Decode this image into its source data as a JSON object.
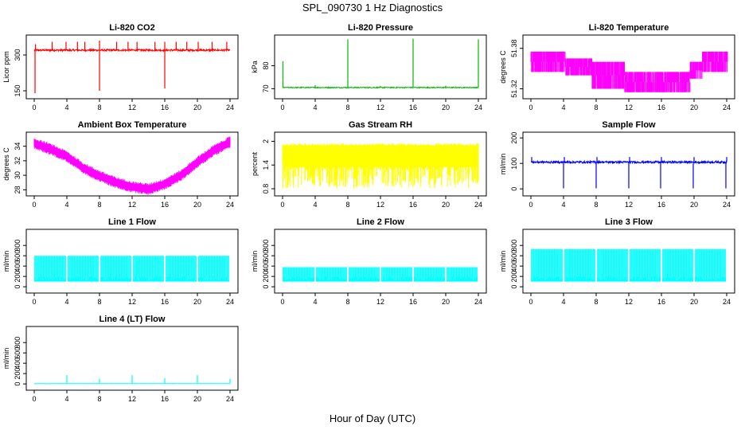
{
  "figure": {
    "title": "SPL_090730  1 Hz Diagnostics",
    "xlabel": "Hour of Day (UTC)"
  },
  "chart_data": [
    {
      "type": "line",
      "title": "Li-820 CO2",
      "ylabel": "Licor ppm",
      "color": "#ff0000",
      "xlim": [
        0,
        24
      ],
      "xticks": [
        0,
        4,
        8,
        12,
        16,
        20,
        24
      ],
      "ylim": [
        130,
        370
      ],
      "yticks": [
        150,
        300
      ],
      "pattern": "spiky-baseline",
      "baseline": 320,
      "noise": 4,
      "spikes": [
        {
          "x": 0.1,
          "y": 140
        },
        {
          "x": 0.15,
          "y": 345
        },
        {
          "x": 2.2,
          "y": 355
        },
        {
          "x": 3.9,
          "y": 355
        },
        {
          "x": 5.3,
          "y": 355
        },
        {
          "x": 6.2,
          "y": 355
        },
        {
          "x": 8.0,
          "y": 150
        },
        {
          "x": 8.0,
          "y": 360
        },
        {
          "x": 10.1,
          "y": 355
        },
        {
          "x": 11.5,
          "y": 355
        },
        {
          "x": 12.6,
          "y": 355
        },
        {
          "x": 14.8,
          "y": 355
        },
        {
          "x": 16.0,
          "y": 160
        },
        {
          "x": 16.0,
          "y": 355
        },
        {
          "x": 17.4,
          "y": 355
        },
        {
          "x": 18.7,
          "y": 355
        },
        {
          "x": 20.1,
          "y": 355
        },
        {
          "x": 21.8,
          "y": 355
        },
        {
          "x": 23.6,
          "y": 355
        }
      ]
    },
    {
      "type": "line",
      "title": "Li-820 Pressure",
      "ylabel": "kPa",
      "color": "#00bb00",
      "xlim": [
        0,
        24
      ],
      "xticks": [
        0,
        4,
        8,
        12,
        16,
        20,
        24
      ],
      "ylim": [
        67,
        92
      ],
      "yticks": [
        70,
        80
      ],
      "pattern": "spiky-baseline",
      "baseline": 70.5,
      "noise": 0.2,
      "spikes": [
        {
          "x": 0.05,
          "y": 82
        },
        {
          "x": 4.0,
          "y": 71.5
        },
        {
          "x": 8.0,
          "y": 91.5
        },
        {
          "x": 12.0,
          "y": 71.2
        },
        {
          "x": 16.0,
          "y": 91.8
        },
        {
          "x": 20.0,
          "y": 71.3
        },
        {
          "x": 24.0,
          "y": 91.5
        }
      ]
    },
    {
      "type": "line",
      "title": "Li-820 Temperature",
      "ylabel": "degrees C",
      "color": "#ff00ff",
      "xlim": [
        0,
        24
      ],
      "xticks": [
        0,
        4,
        8,
        12,
        16,
        20,
        24
      ],
      "ylim": [
        51.31,
        51.395
      ],
      "yticks": [
        51.32,
        51.38
      ],
      "pattern": "quantized-bands",
      "segments": [
        {
          "x0": 0,
          "x1": 4.2,
          "lo": 51.345,
          "hi": 51.375
        },
        {
          "x0": 4.2,
          "x1": 7.5,
          "lo": 51.34,
          "hi": 51.365
        },
        {
          "x0": 7.5,
          "x1": 11.5,
          "lo": 51.32,
          "hi": 51.36
        },
        {
          "x0": 11.5,
          "x1": 19.5,
          "lo": 51.315,
          "hi": 51.345
        },
        {
          "x0": 19.5,
          "x1": 21.0,
          "lo": 51.335,
          "hi": 51.36
        },
        {
          "x0": 21.0,
          "x1": 24.1,
          "lo": 51.345,
          "hi": 51.375
        }
      ]
    },
    {
      "type": "line",
      "title": "Ambient Box Temperature",
      "ylabel": "degrees C",
      "color": "#ff00ff",
      "xlim": [
        0,
        24
      ],
      "xticks": [
        0,
        4,
        8,
        12,
        16,
        20,
        24
      ],
      "ylim": [
        27.6,
        35.5
      ],
      "yticks": [
        28,
        30,
        32,
        34
      ],
      "pattern": "band-curve",
      "center": [
        [
          0,
          34.4
        ],
        [
          2,
          33.6
        ],
        [
          4,
          32.6
        ],
        [
          6,
          31.0
        ],
        [
          8,
          29.9
        ],
        [
          10,
          29.0
        ],
        [
          12,
          28.4
        ],
        [
          14,
          28.1
        ],
        [
          16,
          28.8
        ],
        [
          18,
          30.0
        ],
        [
          20,
          31.8
        ],
        [
          22,
          33.4
        ],
        [
          24,
          34.6
        ]
      ],
      "halfwidth": 0.45
    },
    {
      "type": "line",
      "title": "Gas Stream RH",
      "ylabel": "percent",
      "color": "#ffff00",
      "xlim": [
        0,
        24
      ],
      "xticks": [
        0,
        4,
        8,
        12,
        16,
        20,
        24
      ],
      "ylim": [
        0.7,
        2.15
      ],
      "yticks": [
        0.8,
        1.4,
        2.0
      ],
      "pattern": "noise-band",
      "lo": 0.8,
      "hi": 1.95,
      "base": 1.55
    },
    {
      "type": "line",
      "title": "Sample Flow",
      "ylabel": "ml/min",
      "color": "#0000ff",
      "xlim": [
        0,
        24
      ],
      "xticks": [
        0,
        4,
        8,
        12,
        16,
        20,
        24
      ],
      "ylim": [
        -15,
        210
      ],
      "yticks": [
        0,
        100,
        200
      ],
      "pattern": "spiky-baseline",
      "baseline": 105,
      "noise": 4,
      "spikes": [
        {
          "x": 0.1,
          "y": 125
        },
        {
          "x": 4.0,
          "y": 2
        },
        {
          "x": 4.1,
          "y": 125
        },
        {
          "x": 8.0,
          "y": 2
        },
        {
          "x": 8.1,
          "y": 125
        },
        {
          "x": 12.0,
          "y": 2
        },
        {
          "x": 12.1,
          "y": 125
        },
        {
          "x": 15.9,
          "y": 2
        },
        {
          "x": 16.0,
          "y": 125
        },
        {
          "x": 19.9,
          "y": 2
        },
        {
          "x": 20.0,
          "y": 125
        },
        {
          "x": 23.9,
          "y": 2
        },
        {
          "x": 24.0,
          "y": 125
        }
      ]
    },
    {
      "type": "line",
      "title": "Line 1 Flow",
      "ylabel": "ml/min",
      "color": "#00ffff",
      "xlim": [
        0,
        24
      ],
      "xticks": [
        0,
        4,
        8,
        12,
        16,
        20,
        24
      ],
      "ylim": [
        -60,
        1050
      ],
      "yticks": [
        0,
        200,
        400,
        600,
        800
      ],
      "pattern": "filled-block",
      "lo": 100,
      "hi": 600,
      "blocks": [
        {
          "x0": 0,
          "x1": 3.9
        },
        {
          "x0": 4.1,
          "x1": 7.9
        },
        {
          "x0": 8.1,
          "x1": 11.9
        },
        {
          "x0": 12.1,
          "x1": 15.9
        },
        {
          "x0": 16.1,
          "x1": 19.9
        },
        {
          "x0": 20.1,
          "x1": 23.9
        }
      ]
    },
    {
      "type": "line",
      "title": "Line 2 Flow",
      "ylabel": "ml/min",
      "color": "#00ffff",
      "xlim": [
        0,
        24
      ],
      "xticks": [
        0,
        4,
        8,
        12,
        16,
        20,
        24
      ],
      "ylim": [
        -60,
        1050
      ],
      "yticks": [
        0,
        200,
        400,
        600,
        800
      ],
      "pattern": "filled-block",
      "lo": 100,
      "hi": 380,
      "blocks": [
        {
          "x0": 0,
          "x1": 3.9
        },
        {
          "x0": 4.1,
          "x1": 7.9
        },
        {
          "x0": 8.1,
          "x1": 11.9
        },
        {
          "x0": 12.1,
          "x1": 15.9
        },
        {
          "x0": 16.1,
          "x1": 19.9
        },
        {
          "x0": 20.1,
          "x1": 23.9
        }
      ]
    },
    {
      "type": "line",
      "title": "Line 3 Flow",
      "ylabel": "ml/min",
      "color": "#00ffff",
      "xlim": [
        0,
        24
      ],
      "xticks": [
        0,
        4,
        8,
        12,
        16,
        20,
        24
      ],
      "ylim": [
        -60,
        1050
      ],
      "yticks": [
        0,
        200,
        400,
        600,
        800
      ],
      "pattern": "filled-block",
      "lo": 100,
      "hi": 730,
      "blocks": [
        {
          "x0": 0,
          "x1": 3.9
        },
        {
          "x0": 4.1,
          "x1": 7.9
        },
        {
          "x0": 8.1,
          "x1": 11.9
        },
        {
          "x0": 12.1,
          "x1": 15.9
        },
        {
          "x0": 16.1,
          "x1": 19.9
        },
        {
          "x0": 20.1,
          "x1": 23.9
        }
      ]
    },
    {
      "type": "line",
      "title": "Line 4 (LT) Flow",
      "ylabel": "ml/min",
      "color": "#00ffff",
      "xlim": [
        0,
        24
      ],
      "xticks": [
        0,
        4,
        8,
        12,
        16,
        20,
        24
      ],
      "ylim": [
        -60,
        1050
      ],
      "yticks": [
        0,
        200,
        400,
        600,
        800
      ],
      "pattern": "spiky-baseline",
      "baseline": 5,
      "noise": 2,
      "spikes": [
        {
          "x": 4.0,
          "y": 170
        },
        {
          "x": 8.0,
          "y": 100
        },
        {
          "x": 12.0,
          "y": 170
        },
        {
          "x": 16.0,
          "y": 110
        },
        {
          "x": 20.0,
          "y": 170
        },
        {
          "x": 24.0,
          "y": 100
        }
      ]
    }
  ]
}
